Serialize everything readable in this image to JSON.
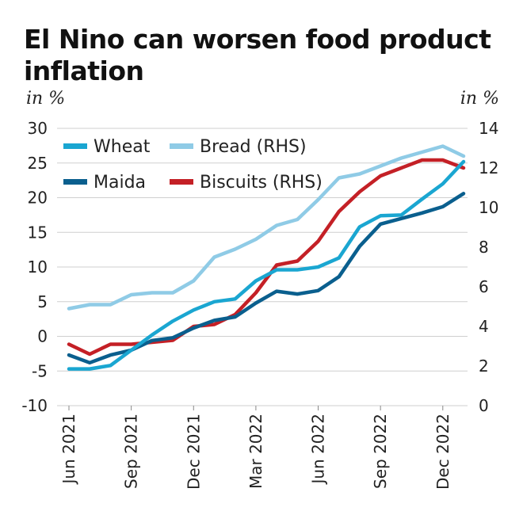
{
  "chart_data": {
    "type": "line",
    "title": "El Nino can worsen food product inflation",
    "ylabel_left": "in %",
    "ylabel_right": "in %",
    "ylim_left": [
      -10,
      30
    ],
    "ylim_right": [
      0,
      14
    ],
    "yticks_left": [
      -10,
      -5,
      0,
      5,
      10,
      15,
      20,
      25,
      30
    ],
    "yticks_right": [
      0,
      2,
      4,
      6,
      8,
      10,
      12,
      14
    ],
    "x_tick_labels": [
      "Jun 2021",
      "Sep 2021",
      "Dec 2021",
      "Mar 2022",
      "Jun 2022",
      "Sep 2022",
      "Dec 2022"
    ],
    "x_tick_index": [
      0,
      3,
      6,
      9,
      12,
      15,
      18
    ],
    "x_count": 20,
    "legend_position": "top-left",
    "series": [
      {
        "name": "Wheat",
        "axis": "left",
        "color": "#1aa6d1",
        "values": [
          -4.7,
          -4.7,
          -4.2,
          -2.0,
          0.2,
          2.2,
          3.8,
          5.0,
          5.4,
          8.0,
          9.6,
          9.6,
          10.0,
          11.3,
          15.8,
          17.4,
          17.5,
          19.8,
          22.0,
          25.2
        ]
      },
      {
        "name": "Maida",
        "axis": "left",
        "color": "#0a5f8e",
        "values": [
          -2.7,
          -3.8,
          -2.7,
          -2.0,
          -0.6,
          -0.2,
          1.2,
          2.3,
          2.8,
          4.8,
          6.5,
          6.1,
          6.6,
          8.6,
          13.0,
          16.2,
          17.0,
          17.8,
          18.7,
          20.6
        ]
      },
      {
        "name": "Bread (RHS)",
        "axis": "right",
        "color": "#8fcbe6",
        "values": [
          4.9,
          5.1,
          5.1,
          5.6,
          5.7,
          5.7,
          6.3,
          7.5,
          7.9,
          8.4,
          9.1,
          9.4,
          10.4,
          11.5,
          11.7,
          12.1,
          12.5,
          12.8,
          13.1,
          12.6
        ]
      },
      {
        "name": "Biscuits (RHS)",
        "axis": "right",
        "color": "#c42026",
        "values": [
          3.1,
          2.6,
          3.1,
          3.1,
          3.2,
          3.3,
          4.0,
          4.1,
          4.6,
          5.7,
          7.1,
          7.3,
          8.3,
          9.8,
          10.8,
          11.6,
          12.0,
          12.4,
          12.4,
          12.0
        ]
      }
    ]
  }
}
